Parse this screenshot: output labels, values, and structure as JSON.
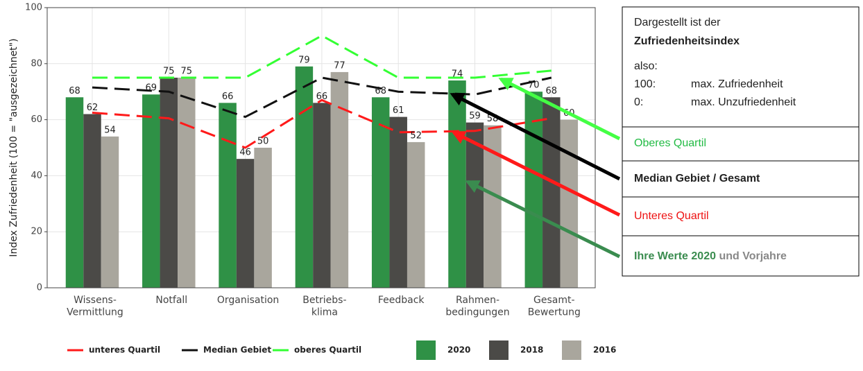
{
  "chart_data": {
    "type": "bar",
    "y_label": "Index Zufriedenheit (100 = \"ausgezeichnet\")",
    "categories": [
      "Wissens-\nVermittlung",
      "Notfall",
      "Organisation",
      "Betriebs-\nklima",
      "Feedback",
      "Rahmen-\nbedingungen",
      "Gesamt-\nBewertung"
    ],
    "series": [
      {
        "name": "unteres Quartil",
        "type": "line",
        "color": "#ff1a1a",
        "values": [
          62.5,
          60.5,
          50,
          67,
          55.5,
          56,
          60.5
        ]
      },
      {
        "name": "Median Gebiet",
        "type": "line",
        "color": "#111111",
        "values": [
          71.5,
          70,
          61,
          75,
          70,
          69,
          75
        ]
      },
      {
        "name": "oberes Quartil",
        "type": "line",
        "color": "#33ff33",
        "values": [
          75,
          75,
          75,
          90,
          75,
          75,
          77.5
        ]
      },
      {
        "name": "2020",
        "type": "bar",
        "color": "#2f9146",
        "values": [
          68,
          69,
          66,
          79,
          68,
          74,
          70
        ]
      },
      {
        "name": "2018",
        "type": "bar",
        "color": "#4b4a47",
        "values": [
          62,
          75,
          46,
          66,
          61,
          59,
          68
        ]
      },
      {
        "name": "2016",
        "type": "bar",
        "color": "#a9a69d",
        "values": [
          54,
          75,
          50,
          77,
          52,
          58,
          60
        ]
      }
    ],
    "ylim": [
      0,
      100
    ],
    "yticks": [
      0,
      20,
      40,
      60,
      80,
      100
    ],
    "grid": true,
    "info_box": [
      "Dargestellt ist der",
      "Zufriedenheitsindex",
      "also:",
      "100:",
      "max. Zufriedenheit",
      "0:",
      "max. Unzufriedenheit"
    ],
    "annotations": [
      "Oberes Quartil",
      "Median Gebiet / Gesamt",
      "Unteres Quartil",
      "Ihre Werte 2020",
      "und Vorjahre"
    ]
  }
}
